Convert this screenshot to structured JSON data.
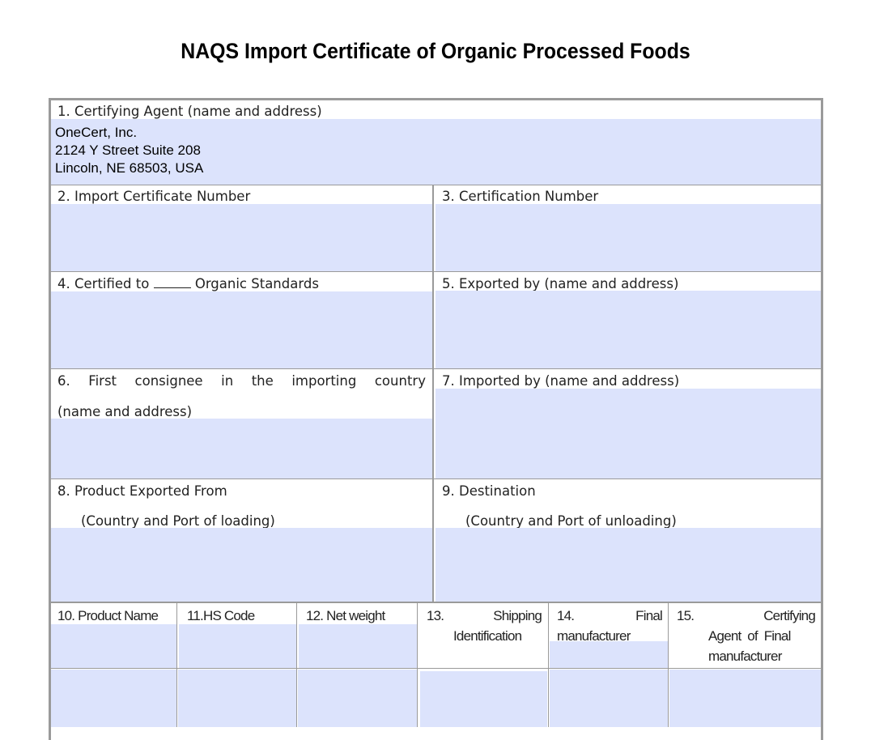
{
  "title": "NAQS Import Certificate of Organic Processed Foods",
  "fields": {
    "f1": {
      "label": "1. Certifying Agent (name and address)",
      "value": [
        "OneCert, Inc.",
        "2124 Y Street Suite 208",
        "Lincoln, NE 68503, USA"
      ]
    },
    "f2": {
      "label": "2. Import Certificate Number",
      "value": ""
    },
    "f3": {
      "label": "3. Certification Number",
      "value": ""
    },
    "f4": {
      "label_a": "4. Certified to",
      "label_b": "Organic Standards",
      "value": ""
    },
    "f5": {
      "label": "5. Exported by (name and address)",
      "value": ""
    },
    "f6": {
      "label_words": [
        "6.",
        "First",
        "consignee",
        "in",
        "the",
        "importing",
        "country"
      ],
      "label2": "(name and address)",
      "value": ""
    },
    "f7": {
      "label": "7. Imported by (name and address)",
      "value": ""
    },
    "f8": {
      "label": "8. Product Exported From",
      "label2": "(Country and Port of loading)",
      "value": ""
    },
    "f9": {
      "label": "9. Destination",
      "label2": "(Country and Port of unloading)",
      "value": ""
    }
  },
  "table_headers": [
    "10. Product Name",
    "11.HS Code",
    "12. Net weight"
  ],
  "h13": {
    "num": "13.",
    "a": "Shipping",
    "b": "Identification"
  },
  "h14": {
    "num": "14.",
    "a": "Final",
    "b": "manufacturer"
  },
  "h15": {
    "num": "15.",
    "a": "Certifying",
    "b": "Agent  of  Final",
    "c": "manufacturer"
  },
  "colors": {
    "field_fill": "#dce3fc",
    "border": "#9a9a9a"
  }
}
